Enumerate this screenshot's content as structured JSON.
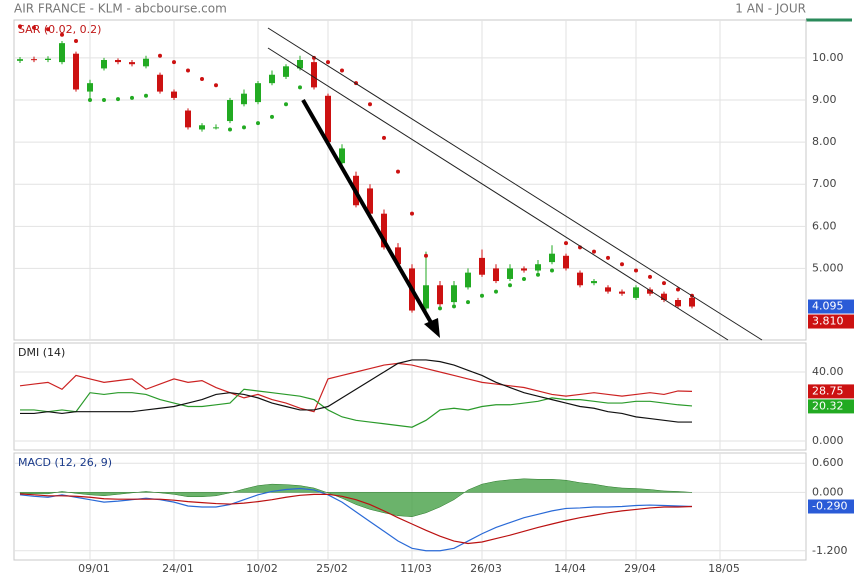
{
  "header": {
    "title": "AIR FRANCE - KLM - abcbourse.com",
    "period": "1 AN - JOUR"
  },
  "chart_data": [
    {
      "type": "candlestick",
      "title": "SAR (0.02, 0.2)",
      "open": [
        9.93,
        9.97,
        9.95,
        9.9,
        10.1,
        9.2,
        9.75,
        9.95,
        9.9,
        9.8,
        9.6,
        9.2,
        8.75,
        8.3,
        8.35,
        8.5,
        8.9,
        8.95,
        9.4,
        9.55,
        9.75,
        9.9,
        9.1,
        7.5,
        7.2,
        6.9,
        6.3,
        5.5,
        5.0,
        4.05,
        4.6,
        4.2,
        4.55,
        5.25,
        5.0,
        4.75,
        5.0,
        4.95,
        5.15,
        5.3,
        4.9,
        4.65,
        4.55,
        4.45,
        4.3,
        4.5,
        4.4,
        4.25,
        4.3,
        null,
        null
      ],
      "close": [
        9.97,
        9.95,
        9.98,
        10.35,
        9.25,
        9.4,
        9.95,
        9.9,
        9.85,
        9.98,
        9.2,
        9.05,
        8.35,
        8.4,
        8.35,
        9.0,
        9.15,
        9.4,
        9.6,
        9.8,
        9.95,
        9.3,
        8.0,
        7.85,
        6.5,
        6.3,
        5.5,
        5.1,
        4.0,
        4.6,
        4.15,
        4.6,
        4.9,
        4.85,
        4.7,
        5.0,
        4.95,
        5.1,
        5.35,
        5.0,
        4.6,
        4.7,
        4.45,
        4.4,
        4.55,
        4.4,
        4.25,
        4.1,
        4.095,
        null,
        null
      ],
      "high": [
        10.02,
        10.03,
        10.04,
        10.4,
        10.15,
        9.48,
        10.0,
        9.99,
        9.95,
        10.05,
        9.65,
        9.25,
        8.8,
        8.45,
        8.42,
        9.05,
        9.25,
        9.45,
        9.7,
        9.85,
        10.05,
        9.95,
        9.15,
        7.95,
        7.3,
        7.0,
        6.4,
        5.6,
        5.1,
        5.4,
        4.7,
        4.7,
        5.0,
        5.45,
        5.1,
        5.1,
        5.05,
        5.2,
        5.55,
        5.35,
        4.95,
        4.75,
        4.6,
        4.5,
        4.6,
        4.55,
        4.45,
        4.3,
        4.35,
        null,
        null
      ],
      "low": [
        9.88,
        9.9,
        9.9,
        9.85,
        9.2,
        9.0,
        9.7,
        9.85,
        9.8,
        9.75,
        9.15,
        9.0,
        8.3,
        8.25,
        8.3,
        8.45,
        8.85,
        8.9,
        9.35,
        9.5,
        9.7,
        9.25,
        7.95,
        7.45,
        6.45,
        6.25,
        5.45,
        5.05,
        3.95,
        4.0,
        4.1,
        4.15,
        4.5,
        4.8,
        4.65,
        4.7,
        4.9,
        4.9,
        5.1,
        4.95,
        4.55,
        4.6,
        4.4,
        4.35,
        4.25,
        4.35,
        4.2,
        4.05,
        4.05,
        null,
        null
      ],
      "up_color": "#22aa22",
      "down_color": "#cc1111",
      "sar": [
        10.75,
        10.72,
        10.68,
        10.55,
        10.4,
        9.0,
        9.0,
        9.02,
        9.05,
        9.1,
        10.05,
        9.9,
        9.7,
        9.5,
        9.35,
        8.3,
        8.35,
        8.45,
        8.6,
        8.9,
        9.3,
        10.0,
        9.9,
        9.7,
        9.4,
        8.9,
        8.1,
        7.3,
        6.3,
        5.3,
        4.05,
        4.1,
        4.2,
        4.35,
        4.45,
        4.6,
        4.75,
        4.85,
        4.95,
        5.6,
        5.5,
        5.4,
        5.25,
        5.1,
        4.95,
        4.8,
        4.65,
        4.5,
        4.35,
        null,
        null
      ],
      "ylim": [
        3.3,
        10.9
      ],
      "yticks": [
        {
          "value": 5,
          "label": "5.000"
        },
        {
          "value": 6,
          "label": "6.00"
        },
        {
          "value": 7,
          "label": "7.00"
        },
        {
          "value": 8,
          "label": "8.00"
        },
        {
          "value": 9,
          "label": "9.00"
        },
        {
          "value": 10,
          "label": "10.00"
        }
      ],
      "last_labels": [
        {
          "value": 4.095,
          "label": "4.095",
          "color": "#2a5bd7"
        },
        {
          "value": 3.81,
          "label": "3.810",
          "color": "#cc1111"
        }
      ]
    },
    {
      "type": "line",
      "title": "DMI (14)",
      "series": [
        {
          "color": "#cc2222",
          "values": [
            32,
            33,
            34,
            30,
            38,
            36,
            34,
            35,
            36,
            30,
            33,
            36,
            34,
            35,
            31,
            28,
            25,
            27,
            24,
            22,
            19,
            17,
            36,
            38,
            40,
            42,
            44,
            45,
            44,
            42,
            40,
            38,
            36,
            34,
            33,
            32,
            31,
            29,
            27,
            26,
            27,
            28,
            27,
            26,
            27,
            28,
            27,
            29,
            28.75,
            null,
            null
          ]
        },
        {
          "color": "#2a9a2a",
          "values": [
            18,
            18,
            17,
            18,
            17,
            28,
            27,
            28,
            28,
            27,
            24,
            22,
            20,
            20,
            21,
            22,
            30,
            29,
            28,
            27,
            26,
            24,
            18,
            14,
            12,
            11,
            10,
            9,
            8,
            12,
            18,
            19,
            18,
            20,
            21,
            21,
            22,
            23,
            25,
            24,
            24,
            23,
            22,
            22,
            23,
            23,
            22,
            21,
            20.32,
            null,
            null
          ]
        },
        {
          "color": "#111111",
          "values": [
            16,
            16,
            17,
            16,
            17,
            17,
            17,
            17,
            17,
            18,
            19,
            20,
            22,
            24,
            27,
            28,
            27,
            25,
            22,
            20,
            18,
            18,
            20,
            25,
            30,
            35,
            40,
            45,
            47,
            47,
            46,
            44,
            41,
            38,
            34,
            31,
            28,
            26,
            24,
            22,
            20,
            19,
            17,
            16,
            14,
            13,
            12,
            11,
            11,
            null,
            null
          ]
        }
      ],
      "ylim": [
        -5.2,
        56.8
      ],
      "yticks": [
        {
          "value": 0,
          "label": "0.000"
        },
        {
          "value": 40,
          "label": "40.00"
        }
      ],
      "last_labels": [
        {
          "value": 28.75,
          "label": "28.75",
          "color": "#cc1111"
        },
        {
          "value": 20.32,
          "label": "20.32",
          "color": "#22aa22"
        }
      ]
    },
    {
      "type": "line",
      "title": "MACD (12, 26, 9)",
      "categories": [
        null,
        null,
        null,
        null,
        null,
        "09/01",
        null,
        null,
        null,
        null,
        null,
        "24/01",
        null,
        null,
        null,
        null,
        null,
        "10/02",
        null,
        null,
        null,
        null,
        "25/02",
        null,
        null,
        null,
        null,
        null,
        "11/03",
        null,
        null,
        null,
        null,
        "26/03",
        null,
        null,
        null,
        null,
        null,
        "14/04",
        null,
        null,
        null,
        null,
        "29/04",
        null,
        null,
        null,
        null,
        null,
        "18/05"
      ],
      "histogram": {
        "color": "#3a9a3a",
        "values": [
          -0.02,
          -0.03,
          -0.03,
          0.02,
          -0.02,
          -0.05,
          -0.07,
          -0.04,
          -0.01,
          0.02,
          -0.01,
          -0.04,
          -0.09,
          -0.09,
          -0.07,
          -0.01,
          0.07,
          0.14,
          0.17,
          0.16,
          0.14,
          0.09,
          -0.01,
          -0.12,
          -0.25,
          -0.35,
          -0.42,
          -0.48,
          -0.5,
          -0.42,
          -0.3,
          -0.15,
          0.05,
          0.17,
          0.23,
          0.26,
          0.28,
          0.27,
          0.27,
          0.25,
          0.2,
          0.17,
          0.12,
          0.09,
          0.08,
          0.06,
          0.03,
          0.02,
          0.0,
          null,
          null
        ]
      },
      "series": [
        {
          "color": "#2a6ad7",
          "values": [
            -0.05,
            -0.08,
            -0.1,
            -0.05,
            -0.1,
            -0.15,
            -0.2,
            -0.18,
            -0.15,
            -0.12,
            -0.15,
            -0.2,
            -0.28,
            -0.3,
            -0.3,
            -0.25,
            -0.15,
            -0.05,
            0.02,
            0.06,
            0.08,
            0.05,
            -0.05,
            -0.2,
            -0.4,
            -0.6,
            -0.8,
            -1.0,
            -1.15,
            -1.2,
            -1.2,
            -1.15,
            -1.0,
            -0.85,
            -0.72,
            -0.62,
            -0.52,
            -0.45,
            -0.38,
            -0.33,
            -0.32,
            -0.3,
            -0.3,
            -0.29,
            -0.27,
            -0.26,
            -0.27,
            -0.28,
            -0.29,
            null,
            null
          ]
        },
        {
          "color": "#bb1111",
          "values": [
            -0.03,
            -0.05,
            -0.07,
            -0.07,
            -0.08,
            -0.1,
            -0.13,
            -0.14,
            -0.14,
            -0.14,
            -0.14,
            -0.16,
            -0.19,
            -0.21,
            -0.23,
            -0.24,
            -0.22,
            -0.19,
            -0.15,
            -0.1,
            -0.06,
            -0.04,
            -0.04,
            -0.08,
            -0.15,
            -0.25,
            -0.38,
            -0.52,
            -0.65,
            -0.78,
            -0.9,
            -1.0,
            -1.05,
            -1.02,
            -0.95,
            -0.88,
            -0.8,
            -0.72,
            -0.65,
            -0.58,
            -0.52,
            -0.47,
            -0.42,
            -0.38,
            -0.35,
            -0.32,
            -0.3,
            -0.3,
            -0.29,
            null,
            null
          ]
        }
      ],
      "ylim": [
        -1.39,
        0.81
      ],
      "yticks": [
        {
          "value": -1.2,
          "label": "-1.200"
        },
        {
          "value": 0,
          "label": "0.000"
        },
        {
          "value": 0.6,
          "label": "0.600"
        }
      ],
      "last_labels": [
        {
          "value": -0.29,
          "label": "-0.290",
          "color": "#2a5bd7"
        }
      ]
    }
  ]
}
